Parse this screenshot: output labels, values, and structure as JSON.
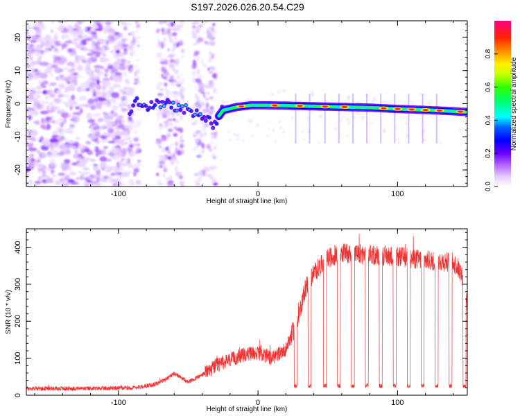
{
  "title": "S197.2026.026.20.54.C29",
  "chart_data": [
    {
      "type": "heatmap",
      "name": "spectrogram",
      "xlabel": "Height of straight line (km)",
      "ylabel": "Frequency (Hz)",
      "xlim": [
        -166,
        150
      ],
      "ylim": [
        -25,
        25
      ],
      "xticks": [
        -100,
        0,
        100
      ],
      "yticks": [
        -20,
        -10,
        0,
        10,
        20
      ],
      "colorbar": {
        "label": "Normalized spectral amplitude",
        "range": [
          0,
          1
        ],
        "ticks": [
          0.0,
          0.2,
          0.4,
          0.6,
          0.8
        ],
        "tick_labels": [
          "0.0",
          "0.2",
          "0.4",
          "0.6",
          "0.8"
        ],
        "colors": [
          "#ffffff",
          "#e6ccff",
          "#8800ff",
          "#0000ff",
          "#00ffff",
          "#00ff00",
          "#ffff00",
          "#ff8800",
          "#ff0000",
          "#ff0088"
        ]
      },
      "signal_track": [
        {
          "h": -90,
          "f": 1
        },
        {
          "h": -80,
          "f": -1
        },
        {
          "h": -68,
          "f": 0
        },
        {
          "h": -50,
          "f": -2
        },
        {
          "h": -40,
          "f": -4
        },
        {
          "h": -32,
          "f": -6
        },
        {
          "h": -25,
          "f": -2
        },
        {
          "h": -15,
          "f": -1
        },
        {
          "h": -5,
          "f": -0.5
        },
        {
          "h": 5,
          "f": -0.5
        },
        {
          "h": 20,
          "f": -0.6
        },
        {
          "h": 40,
          "f": -0.8
        },
        {
          "h": 60,
          "f": -1
        },
        {
          "h": 80,
          "f": -1.2
        },
        {
          "h": 100,
          "f": -1.6
        },
        {
          "h": 120,
          "f": -1.9
        },
        {
          "h": 140,
          "f": -2.3
        },
        {
          "h": 148,
          "f": -2.5
        }
      ]
    },
    {
      "type": "line",
      "name": "snr",
      "xlabel": "Height of straight line (km)",
      "ylabel": "SNR (10 * v/v)",
      "xlim": [
        -166,
        150
      ],
      "ylim": [
        0,
        450
      ],
      "xticks": [
        -100,
        0,
        100
      ],
      "yticks": [
        0,
        100,
        200,
        300,
        400
      ],
      "color": "#ee3333",
      "profile": [
        {
          "h": -166,
          "v": 18
        },
        {
          "h": -120,
          "v": 18
        },
        {
          "h": -90,
          "v": 20
        },
        {
          "h": -75,
          "v": 28
        },
        {
          "h": -65,
          "v": 45
        },
        {
          "h": -60,
          "v": 60
        },
        {
          "h": -50,
          "v": 35
        },
        {
          "h": -40,
          "v": 55
        },
        {
          "h": -30,
          "v": 80
        },
        {
          "h": -20,
          "v": 95
        },
        {
          "h": -10,
          "v": 110
        },
        {
          "h": 0,
          "v": 115
        },
        {
          "h": 10,
          "v": 100
        },
        {
          "h": 20,
          "v": 125
        },
        {
          "h": 28,
          "v": 200
        },
        {
          "h": 34,
          "v": 290
        },
        {
          "h": 40,
          "v": 330
        },
        {
          "h": 50,
          "v": 370
        },
        {
          "h": 60,
          "v": 385
        },
        {
          "h": 80,
          "v": 380
        },
        {
          "h": 100,
          "v": 375
        },
        {
          "h": 120,
          "v": 365
        },
        {
          "h": 140,
          "v": 360
        },
        {
          "h": 146,
          "v": 330
        },
        {
          "h": 150,
          "v": 250
        }
      ],
      "dropouts_h": [
        27,
        37,
        48,
        58,
        68,
        78,
        88,
        98,
        108,
        118,
        128,
        138,
        148
      ],
      "dropout_level": 25
    }
  ]
}
